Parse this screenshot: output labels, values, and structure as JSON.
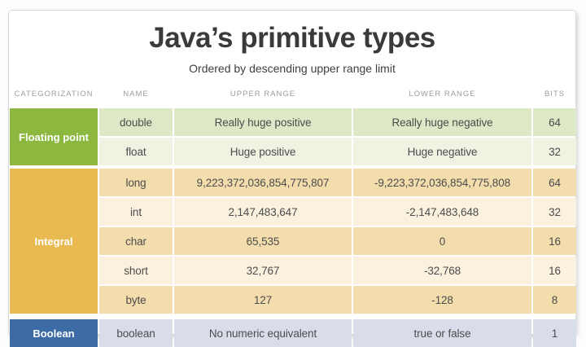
{
  "title": "Java’s primitive types",
  "subtitle": "Ordered by descending upper range limit",
  "columns": {
    "categorization": "CATEGORIZATION",
    "name": "NAME",
    "upper": "UPPER RANGE",
    "lower": "LOWER RANGE",
    "bits": "BITS"
  },
  "colors": {
    "floating_point_category": "#8cb83f",
    "floating_point_row_dark": "#dde9c6",
    "floating_point_row_light": "#eef3e2",
    "integral_category": "#e9ba52",
    "integral_row_dark": "#f3ddac",
    "integral_row_light": "#faf2df",
    "boolean_category": "#3d6ba6",
    "boolean_row": "#d9dde9",
    "title_text": "#3a3a3a",
    "header_text": "#9c9c9c",
    "category_text": "#ffffff"
  },
  "table": {
    "groups": [
      {
        "category": "Floating point",
        "rows": [
          {
            "name": "double",
            "upper": "Really huge positive",
            "lower": "Really huge negative",
            "bits": "64"
          },
          {
            "name": "float",
            "upper": "Huge positive",
            "lower": "Huge negative",
            "bits": "32"
          }
        ]
      },
      {
        "category": "Integral",
        "rows": [
          {
            "name": "long",
            "upper": "9,223,372,036,854,775,807",
            "lower": "-9,223,372,036,854,775,808",
            "bits": "64"
          },
          {
            "name": "int",
            "upper": "2,147,483,647",
            "lower": "-2,147,483,648",
            "bits": "32"
          },
          {
            "name": "char",
            "upper": "65,535",
            "lower": "0",
            "bits": "16"
          },
          {
            "name": "short",
            "upper": "32,767",
            "lower": "-32,768",
            "bits": "16"
          },
          {
            "name": "byte",
            "upper": "127",
            "lower": "-128",
            "bits": "8"
          }
        ]
      },
      {
        "category": "Boolean",
        "rows": [
          {
            "name": "boolean",
            "upper": "No numeric equivalent",
            "lower": "true or false",
            "bits": "1"
          }
        ]
      }
    ]
  },
  "chart_data": {
    "type": "table",
    "title": "Java’s primitive types",
    "subtitle": "Ordered by descending upper range limit",
    "columns": [
      "CATEGORIZATION",
      "NAME",
      "UPPER RANGE",
      "LOWER RANGE",
      "BITS"
    ],
    "rows": [
      [
        "Floating point",
        "double",
        "Really huge positive",
        "Really huge negative",
        64
      ],
      [
        "Floating point",
        "float",
        "Huge positive",
        "Huge negative",
        32
      ],
      [
        "Integral",
        "long",
        "9,223,372,036,854,775,807",
        "-9,223,372,036,854,775,808",
        64
      ],
      [
        "Integral",
        "int",
        "2,147,483,647",
        "-2,147,483,648",
        32
      ],
      [
        "Integral",
        "char",
        "65,535",
        "0",
        16
      ],
      [
        "Integral",
        "short",
        "32,767",
        "-32,768",
        16
      ],
      [
        "Integral",
        "byte",
        "127",
        "-128",
        8
      ],
      [
        "Boolean",
        "boolean",
        "No numeric equivalent",
        "true or false",
        1
      ]
    ]
  }
}
